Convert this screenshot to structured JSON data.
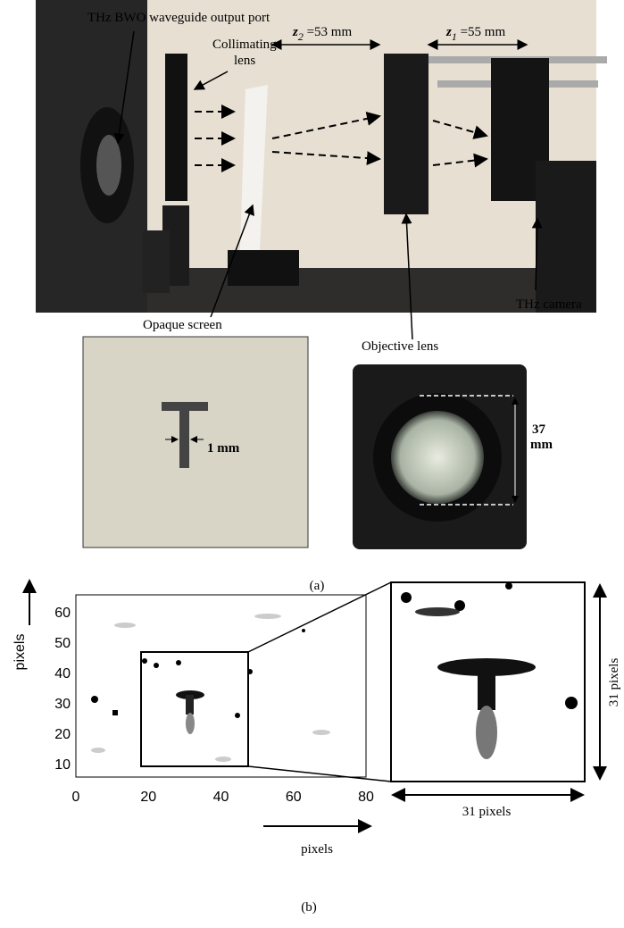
{
  "panel_a": {
    "labels": {
      "port": "THz BWO waveguide output port",
      "collimating_1": "Collimating",
      "collimating_2": "lens",
      "z2": {
        "variable": "z",
        "subscript": "2",
        "text": " =53 mm"
      },
      "z1": {
        "variable": "z",
        "subscript": "1",
        "text": " =55 mm"
      },
      "camera": "THz camera",
      "screen": "Opaque screen",
      "objective": "Objective lens",
      "slit_width": "1 mm",
      "diameter_1": "37",
      "diameter_2": "mm"
    },
    "caption": "(a)"
  },
  "panel_b": {
    "xticks": [
      0,
      20,
      40,
      60,
      80
    ],
    "yticks": [
      10,
      20,
      30,
      40,
      50,
      60
    ],
    "xlabel": "pixels",
    "ylabel": "pixels",
    "zoom_height": "31 pixels",
    "zoom_width": "31 pixels",
    "caption": "(b)"
  }
}
